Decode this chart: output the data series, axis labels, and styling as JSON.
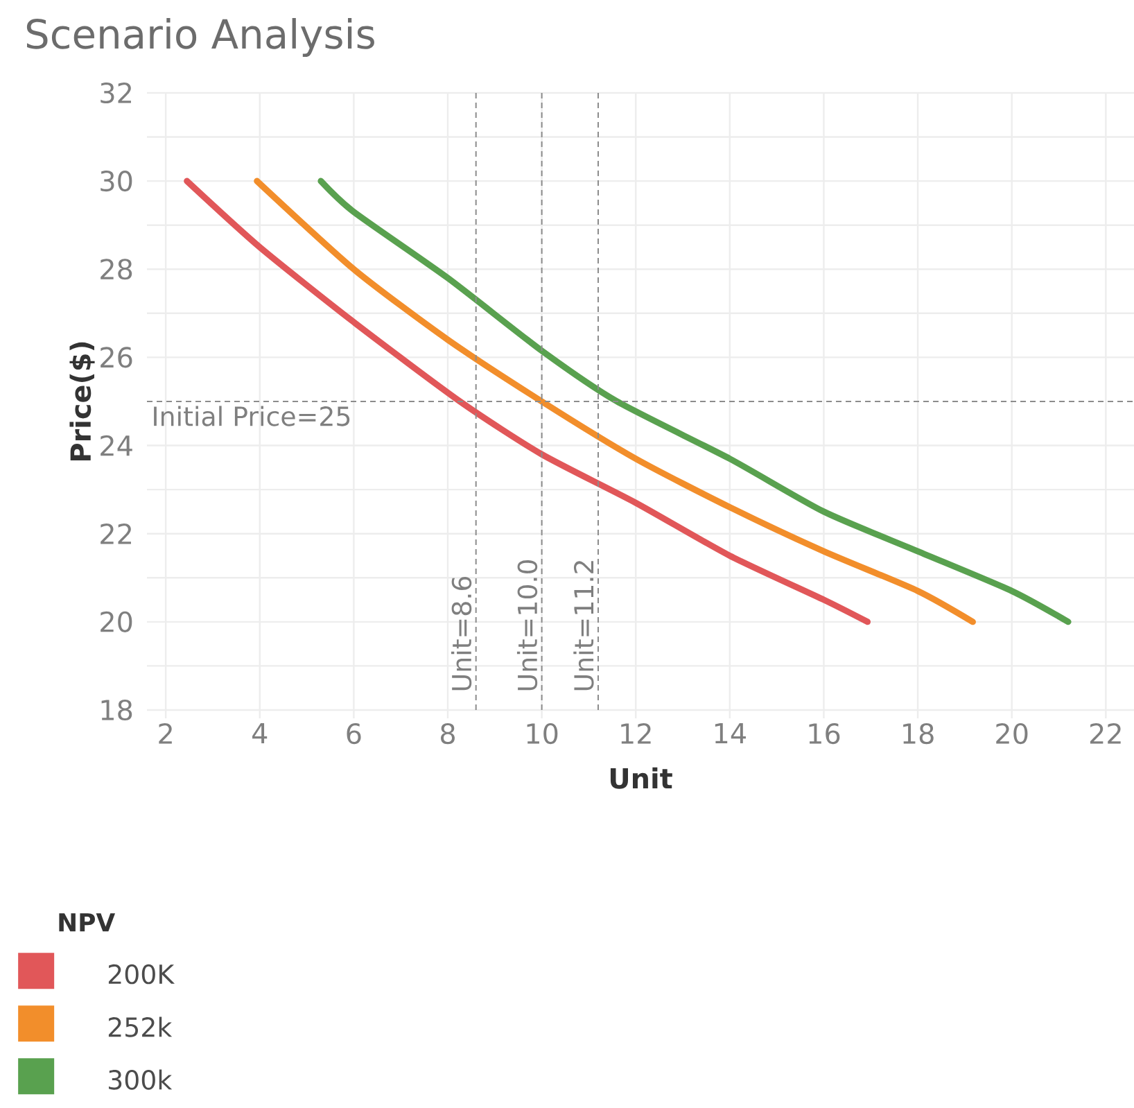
{
  "chart_data": {
    "type": "line",
    "title": "Scenario Analysis",
    "xlabel": "Unit",
    "ylabel": "Price($)",
    "legend_title": "NPV",
    "xlim": [
      1.6,
      22.6
    ],
    "ylim": [
      18,
      32
    ],
    "xticks": [
      2,
      4,
      6,
      8,
      10,
      12,
      14,
      16,
      18,
      20,
      22
    ],
    "yticks": [
      18,
      20,
      22,
      24,
      26,
      28,
      30,
      32
    ],
    "grid": true,
    "legend": "bottom left",
    "line_style": "solid",
    "marker": "none",
    "series": [
      {
        "name": "200K",
        "color": "#e15759",
        "x": [
          2.45,
          4,
          6,
          8.26,
          10,
          12,
          14,
          16,
          16.93
        ],
        "values": [
          30,
          28.5,
          26.8,
          25,
          23.8,
          22.7,
          21.5,
          20.5,
          20
        ]
      },
      {
        "name": "252k",
        "color": "#f28e2b",
        "x": [
          3.94,
          6,
          8,
          10,
          12,
          14,
          16,
          18,
          19.17
        ],
        "values": [
          30,
          28,
          26.4,
          25,
          23.7,
          22.6,
          21.6,
          20.7,
          20
        ]
      },
      {
        "name": "300k",
        "color": "#59a14f",
        "x": [
          5.3,
          6,
          8,
          10,
          11.6,
          14,
          16,
          18,
          20,
          21.2
        ],
        "values": [
          30,
          29.3,
          27.8,
          26.15,
          25,
          23.7,
          22.5,
          21.6,
          20.7,
          20
        ]
      }
    ],
    "ref_lines": [
      {
        "axis": "y",
        "value": 25,
        "label": "Initial Price=25",
        "line_style": "dashed"
      },
      {
        "axis": "x",
        "value": 8.6,
        "label": "Unit=8.6",
        "line_style": "dashed"
      },
      {
        "axis": "x",
        "value": 10.0,
        "label": "Unit=10.0",
        "line_style": "dashed"
      },
      {
        "axis": "x",
        "value": 11.2,
        "label": "Unit=11.2",
        "line_style": "dashed"
      }
    ]
  }
}
